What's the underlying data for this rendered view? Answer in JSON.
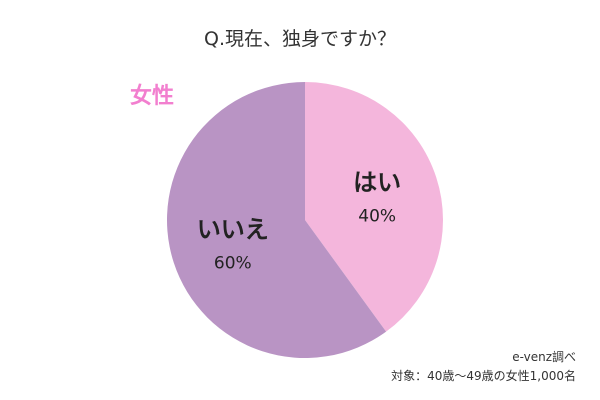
{
  "chart_data": {
    "type": "pie",
    "title": "Q.現在、独身ですか？",
    "group_label": "女性",
    "slices": [
      {
        "label": "はい",
        "value": 40,
        "value_text": "40%",
        "color": "#f4b6dc"
      },
      {
        "label": "いいえ",
        "value": 60,
        "value_text": "60%",
        "color": "#b994c4"
      }
    ],
    "start": "top",
    "direction": "clockwise"
  },
  "source": {
    "line1": "e-venz調べ",
    "line2": "対象：40歳〜49歳の女性1,000名"
  }
}
